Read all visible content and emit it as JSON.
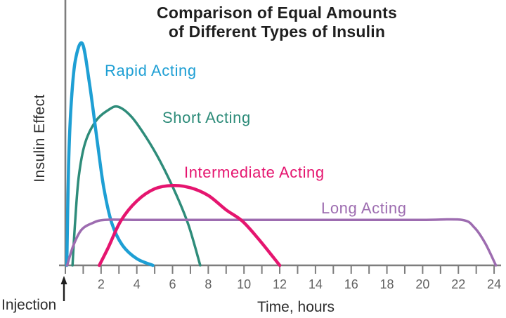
{
  "chart_data": {
    "type": "line",
    "title": "Comparison of Equal Amounts of Different Types of Insulin",
    "title_lines": [
      "Comparison of Equal Amounts",
      "of Different Types of Insulin"
    ],
    "xlabel": "Time, hours",
    "ylabel": "Insulin Effect",
    "injection_label": "Injection",
    "x_axis": {
      "min": 0,
      "max": 24,
      "tick_interval": 1,
      "labeled_ticks": [
        2,
        4,
        6,
        8,
        10,
        12,
        14,
        16,
        18,
        20,
        22,
        24
      ]
    },
    "y_axis": {
      "min": 0,
      "max": 1,
      "note": "relative insulin effect, no tick labels"
    },
    "colors": {
      "axis": "#7d7d7d",
      "tick_label": "#636363",
      "title": "#1f1f1f",
      "text": "#2e2e2e",
      "arrow": "#1f1f1f"
    },
    "series": [
      {
        "name": "rapid-acting",
        "label": "Rapid Acting",
        "color": "#1e9fd4",
        "peak_hour": 1,
        "duration_hours": 5,
        "points": [
          [
            0.08,
            0
          ],
          [
            0.18,
            0.45
          ],
          [
            0.32,
            0.72
          ],
          [
            0.55,
            0.92
          ],
          [
            0.95,
            1.0
          ],
          [
            1.35,
            0.82
          ],
          [
            1.8,
            0.55
          ],
          [
            2.15,
            0.35
          ],
          [
            2.6,
            0.19
          ],
          [
            3.2,
            0.09
          ],
          [
            4.0,
            0.03
          ],
          [
            4.9,
            0
          ]
        ]
      },
      {
        "name": "short-acting",
        "label": "Short Acting",
        "color": "#2e8c7a",
        "peak_hour": 3,
        "duration_hours": 7.5,
        "points": [
          [
            0.4,
            0
          ],
          [
            0.55,
            0.2
          ],
          [
            0.75,
            0.4
          ],
          [
            1.1,
            0.55
          ],
          [
            1.7,
            0.65
          ],
          [
            2.4,
            0.7
          ],
          [
            2.95,
            0.715
          ],
          [
            3.7,
            0.67
          ],
          [
            4.5,
            0.58
          ],
          [
            5.3,
            0.47
          ],
          [
            6.2,
            0.32
          ],
          [
            6.9,
            0.18
          ],
          [
            7.55,
            0
          ]
        ]
      },
      {
        "name": "intermediate-acting",
        "label": "Intermediate Acting",
        "color": "#e5156f",
        "peak_hour": 6,
        "duration_hours": 12,
        "points": [
          [
            1.9,
            0
          ],
          [
            2.4,
            0.08
          ],
          [
            3.1,
            0.2
          ],
          [
            4.0,
            0.29
          ],
          [
            5.0,
            0.345
          ],
          [
            6.0,
            0.36
          ],
          [
            7.0,
            0.35
          ],
          [
            8.0,
            0.315
          ],
          [
            9.0,
            0.25
          ],
          [
            9.9,
            0.2
          ],
          [
            10.8,
            0.12
          ],
          [
            12.0,
            0
          ]
        ]
      },
      {
        "name": "long-acting",
        "label": "Long Acting",
        "color": "#9d6cb0",
        "peak_hour": null,
        "duration_hours": 24,
        "points": [
          [
            0.1,
            0
          ],
          [
            0.45,
            0.09
          ],
          [
            0.9,
            0.16
          ],
          [
            1.5,
            0.19
          ],
          [
            2.2,
            0.205
          ],
          [
            4,
            0.205
          ],
          [
            8,
            0.205
          ],
          [
            12,
            0.205
          ],
          [
            16,
            0.205
          ],
          [
            20,
            0.205
          ],
          [
            22.2,
            0.205
          ],
          [
            22.9,
            0.17
          ],
          [
            23.5,
            0.1
          ],
          [
            24.1,
            0
          ]
        ]
      }
    ]
  }
}
